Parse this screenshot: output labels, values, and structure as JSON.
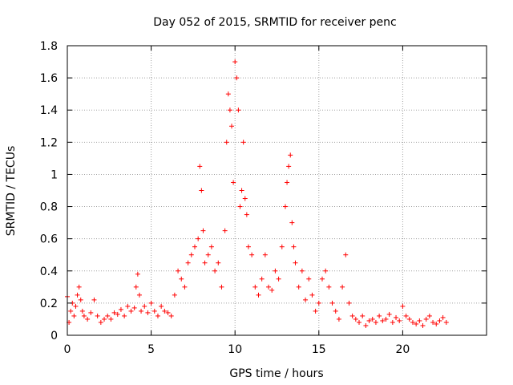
{
  "chart_data": {
    "type": "scatter",
    "title": "Day 052 of 2015, SRMTID for receiver penc",
    "xlabel": "GPS time / hours",
    "ylabel": "SRMTID / TECUs",
    "xlim": [
      0,
      25
    ],
    "ylim": [
      0,
      1.8
    ],
    "grid": true,
    "marker": "+",
    "color": "#ff0000",
    "x_ticks": [
      0,
      5,
      10,
      15,
      20
    ],
    "x_tick_labels": [
      "0",
      "5",
      "10",
      "15",
      "20"
    ],
    "y_ticks": [
      0,
      0.2,
      0.4,
      0.6,
      0.8,
      1,
      1.2,
      1.4,
      1.6,
      1.8
    ],
    "y_tick_labels": [
      "0",
      "0.2",
      "0.4",
      "0.6",
      "0.8",
      "1",
      "1.2",
      "1.4",
      "1.6",
      "1.8"
    ],
    "series": [
      {
        "name": "SRMTID",
        "x": [
          0.0,
          0.1,
          0.2,
          0.3,
          0.4,
          0.5,
          0.6,
          0.7,
          0.8,
          0.9,
          1.0,
          1.2,
          1.4,
          1.6,
          1.8,
          2.0,
          2.2,
          2.4,
          2.6,
          2.8,
          3.0,
          3.2,
          3.4,
          3.6,
          3.8,
          4.0,
          4.1,
          4.2,
          4.3,
          4.4,
          4.6,
          4.8,
          5.0,
          5.2,
          5.4,
          5.6,
          5.8,
          6.0,
          6.2,
          6.4,
          6.6,
          6.8,
          7.0,
          7.2,
          7.4,
          7.6,
          7.8,
          7.9,
          8.0,
          8.1,
          8.2,
          8.4,
          8.6,
          8.8,
          9.0,
          9.2,
          9.4,
          9.5,
          9.6,
          9.7,
          9.8,
          9.9,
          10.0,
          10.1,
          10.2,
          10.3,
          10.4,
          10.5,
          10.6,
          10.7,
          10.8,
          11.0,
          11.2,
          11.4,
          11.6,
          11.8,
          12.0,
          12.2,
          12.4,
          12.6,
          12.8,
          13.0,
          13.1,
          13.2,
          13.3,
          13.4,
          13.5,
          13.6,
          13.8,
          14.0,
          14.2,
          14.4,
          14.6,
          14.8,
          15.0,
          15.2,
          15.4,
          15.6,
          15.8,
          16.0,
          16.2,
          16.4,
          16.6,
          16.8,
          17.0,
          17.2,
          17.4,
          17.6,
          17.8,
          18.0,
          18.2,
          18.4,
          18.6,
          18.8,
          19.0,
          19.2,
          19.4,
          19.6,
          19.8,
          20.0,
          20.2,
          20.4,
          20.6,
          20.8,
          21.0,
          21.2,
          21.4,
          21.6,
          21.8,
          22.0,
          22.2,
          22.4,
          22.6
        ],
        "y": [
          0.24,
          0.08,
          0.15,
          0.2,
          0.12,
          0.18,
          0.25,
          0.3,
          0.22,
          0.15,
          0.12,
          0.1,
          0.14,
          0.22,
          0.12,
          0.08,
          0.1,
          0.12,
          0.1,
          0.14,
          0.13,
          0.16,
          0.12,
          0.18,
          0.15,
          0.17,
          0.3,
          0.38,
          0.25,
          0.15,
          0.18,
          0.14,
          0.2,
          0.15,
          0.12,
          0.18,
          0.15,
          0.14,
          0.12,
          0.25,
          0.4,
          0.35,
          0.3,
          0.45,
          0.5,
          0.55,
          0.6,
          1.05,
          0.9,
          0.65,
          0.45,
          0.5,
          0.55,
          0.4,
          0.45,
          0.3,
          0.65,
          1.2,
          1.5,
          1.4,
          1.3,
          0.95,
          1.7,
          1.6,
          1.4,
          0.8,
          0.9,
          1.2,
          0.85,
          0.75,
          0.55,
          0.5,
          0.3,
          0.25,
          0.35,
          0.5,
          0.3,
          0.28,
          0.4,
          0.35,
          0.55,
          0.8,
          0.95,
          1.05,
          1.12,
          0.7,
          0.55,
          0.45,
          0.3,
          0.4,
          0.22,
          0.35,
          0.25,
          0.15,
          0.2,
          0.35,
          0.4,
          0.3,
          0.2,
          0.15,
          0.1,
          0.3,
          0.5,
          0.2,
          0.12,
          0.1,
          0.08,
          0.12,
          0.06,
          0.09,
          0.1,
          0.08,
          0.12,
          0.09,
          0.1,
          0.13,
          0.08,
          0.11,
          0.09,
          0.18,
          0.12,
          0.1,
          0.08,
          0.07,
          0.09,
          0.06,
          0.1,
          0.12,
          0.08,
          0.07,
          0.09,
          0.11,
          0.08
        ]
      }
    ]
  }
}
